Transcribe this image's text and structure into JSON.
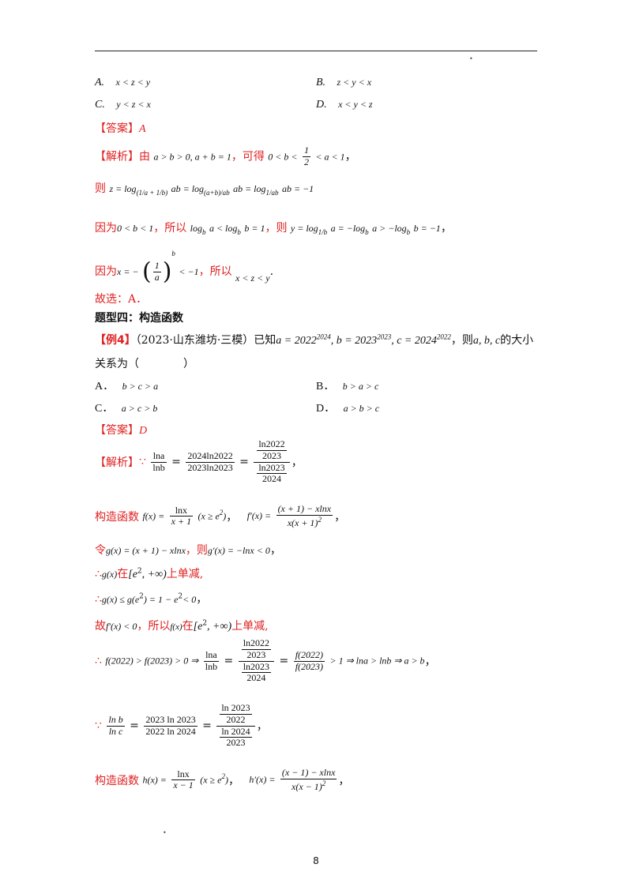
{
  "header": {
    "rule": true
  },
  "q_prev": {
    "optA_label": "A.",
    "optA": "x < z < y",
    "optB_label": "B.",
    "optB": "z < y < x",
    "optC_label": "C.",
    "optC": "y < z < x",
    "optD_label": "D.",
    "optD": "x < y < z"
  },
  "ans1": {
    "tag": "【答案】",
    "value": "A"
  },
  "sol1": {
    "tag": "【解析】",
    "l1_a": "由",
    "l1_m": "a > b > 0, a + b = 1",
    "l1_b": "，可得",
    "l1_m2": "0 < b <",
    "l1_half_num": "1",
    "l1_half_den": "2",
    "l1_m3": "< a < 1",
    "l1_end": "，",
    "l2_a": "则",
    "l2_m": "z = log",
    "l2_sub": "(1/a + 1/b)",
    "l2_m2": "ab = log",
    "l2_sub2": "(a+b)/ab",
    "l2_m3": "ab = log",
    "l2_sub3": "1/ab",
    "l2_m4": "ab = −1",
    "l3_a": "因为",
    "l3_m": "0 < b < 1",
    "l3_b": "，所以",
    "l3_m2": "log",
    "l3_m2b": "a < log",
    "l3_m2c": "b = 1",
    "l3_c": "，则",
    "l3_m3": "y = log",
    "l3_sub3": "1/b",
    "l3_m4": "a = −log",
    "l3_m5": "a > −log",
    "l3_m6": "b = −1",
    "l3_end": "，",
    "l4_a": "因为",
    "l4_m": "x = −",
    "l4_num": "1",
    "l4_den": "a",
    "l4_exp": "b",
    "l4_m2": "< −1",
    "l4_b": "，所以",
    "l4_m3": "x < z < y",
    "l4_end": ".",
    "final": "故选：A．"
  },
  "section": {
    "title": "题型四：构造函数"
  },
  "ex4": {
    "tag": "【例4】",
    "source": "（2023·山东潍坊·三模）已知",
    "a": "a = 2022",
    "a_exp": "2024",
    "b": ", b = 2023",
    "b_exp": "2023",
    "c": ", c = 2024",
    "c_exp": "2022",
    "tail": "，则",
    "vars": "a, b, c",
    "tail2": "的大小",
    "line2": "关系为（　　　　）",
    "optA_label": "A．",
    "optA": "b > c > a",
    "optB_label": "B．",
    "optB": "b > a > c",
    "optC_label": "C．",
    "optC": "a > c > b",
    "optD_label": "D．",
    "optD": "a > b > c"
  },
  "ans2": {
    "tag": "【答案】",
    "value": "D"
  },
  "sol2": {
    "tag": "【解析】",
    "because": "∵",
    "therefore": "∴",
    "s1_lhs_num": "lna",
    "s1_lhs_den": "lnb",
    "s1_mid_num": "2024ln2022",
    "s1_mid_den": "2023ln2023",
    "s1_r_top": "ln2022",
    "s1_r_top_den": "2023",
    "s1_r_bot": "ln2023",
    "s1_r_bot_den": "2024",
    "s1_end": "，",
    "s2_a": "构造函数",
    "s2_f": "f(x) =",
    "s2_num": "lnx",
    "s2_den": "x + 1",
    "s2_dom": "(x ≥ e",
    "s2_dom_exp": "2",
    "s2_dom_end": ")",
    "s2_sep": "，",
    "s2_fp": "f′(x) =",
    "s2_fp_num": "(x + 1) − xlnx",
    "s2_fp_den": "x(x + 1)",
    "s2_fp_den_exp": "2",
    "s2_end": "，",
    "s3_a": "令",
    "s3_m": "g(x) = (x + 1) − xlnx",
    "s3_b": "，则",
    "s3_m2": "g′(x) = −lnx < 0",
    "s3_end": "，",
    "s4_m": "g(x)",
    "s4_a": "在",
    "s4_int": "[e",
    "s4_int_exp": "2",
    "s4_int_end": ", +∞)",
    "s4_b": "上单减,",
    "s5_m": "g(x) ≤ g(e",
    "s5_exp": "2",
    "s5_m2": ") = 1 − e",
    "s5_exp2": "2",
    "s5_m3": "< 0",
    "s5_end": "，",
    "s6_a": "故",
    "s6_m": "f′(x) < 0",
    "s6_b": "，所以",
    "s6_m2": "f(x)",
    "s6_c": "在",
    "s6_int": "[e",
    "s6_int_exp": "2",
    "s6_int_end": ", +∞)",
    "s6_d": "上单减,",
    "s7_m": "f(2022) > f(2023) > 0 ⇒",
    "s7_num": "lna",
    "s7_den": "lnb",
    "s7_eq": "=",
    "s7_r_top": "ln2022",
    "s7_r_top_den": "2023",
    "s7_r_bot": "ln2023",
    "s7_r_bot_den": "2024",
    "s7_eq2": "=",
    "s7_f_num": "f(2022)",
    "s7_f_den": "f(2023)",
    "s7_tail": "> 1 ⇒ lna > lnb ⇒ a > b",
    "s7_end": "，",
    "s8_num": "ln b",
    "s8_den": "ln c",
    "s8_mid_num": "2023 ln 2023",
    "s8_mid_den": "2022 ln 2024",
    "s8_r_top": "ln 2023",
    "s8_r_top_den": "2022",
    "s8_r_bot": "ln 2024",
    "s8_r_bot_den": "2023",
    "s8_end": "，",
    "s9_a": "构造函数",
    "s9_h": "h(x) =",
    "s9_num": "lnx",
    "s9_den": "x − 1",
    "s9_dom": "(x ≥ e",
    "s9_dom_exp": "2",
    "s9_dom_end": ")",
    "s9_sep": "，",
    "s9_hp": "h′(x) =",
    "s9_hp_num": "(x − 1) − xlnx",
    "s9_hp_den": "x(x − 1)",
    "s9_hp_den_exp": "2",
    "s9_end": "，"
  },
  "footer": {
    "page_number": "8"
  }
}
